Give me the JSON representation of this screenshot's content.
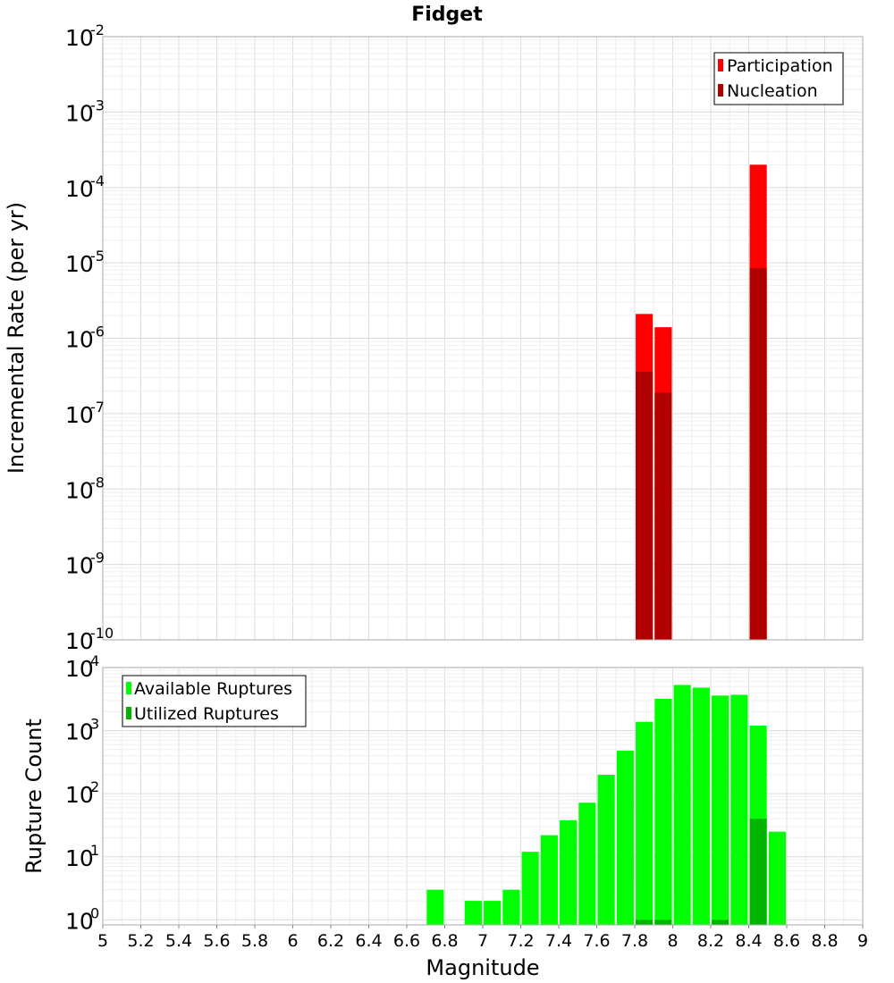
{
  "chart_data": [
    {
      "type": "bar",
      "title": "Fidget",
      "xlabel": "",
      "ylabel": "Incremental Rate (per yr)",
      "y_scale": "log",
      "ylim_exp": [
        -10,
        -2
      ],
      "xlim": [
        5,
        9
      ],
      "bin_width": 0.1,
      "legend_position": "top-right",
      "grid": true,
      "series": [
        {
          "name": "Participation",
          "color": "#ff0000",
          "x": [
            7.85,
            7.95,
            8.45
          ],
          "values": [
            2.1e-06,
            1.4e-06,
            0.0002
          ]
        },
        {
          "name": "Nucleation",
          "color": "#b00000",
          "x": [
            7.85,
            7.95,
            8.45
          ],
          "values": [
            3.6e-07,
            1.9e-07,
            8.5e-06
          ]
        }
      ]
    },
    {
      "type": "bar",
      "title": "",
      "xlabel": "Magnitude",
      "ylabel": "Rupture Count",
      "y_scale": "log",
      "ylim_exp": [
        -0.08,
        4
      ],
      "xlim": [
        5,
        9
      ],
      "bin_width": 0.1,
      "legend_position": "top-left",
      "grid": true,
      "x_ticks": [
        "5",
        "5.2",
        "5.4",
        "5.6",
        "5.8",
        "6",
        "6.2",
        "6.4",
        "6.6",
        "6.8",
        "7",
        "7.2",
        "7.4",
        "7.6",
        "7.8",
        "8",
        "8.2",
        "8.4",
        "8.6",
        "8.8",
        "9"
      ],
      "series": [
        {
          "name": "Available Ruptures",
          "color": "#00ff00",
          "x": [
            6.75,
            6.95,
            7.05,
            7.15,
            7.25,
            7.35,
            7.45,
            7.55,
            7.65,
            7.75,
            7.85,
            7.95,
            8.05,
            8.15,
            8.25,
            8.35,
            8.45,
            8.55
          ],
          "values": [
            3,
            2,
            2,
            3,
            12,
            22,
            38,
            72,
            200,
            480,
            1380,
            3200,
            5300,
            4800,
            3600,
            3700,
            1200,
            25
          ]
        },
        {
          "name": "Utilized Ruptures",
          "color": "#00b400",
          "x": [
            7.85,
            7.95,
            8.25,
            8.45
          ],
          "values": [
            1,
            1,
            1,
            40
          ]
        }
      ]
    }
  ],
  "y_axis_ticks": {
    "top": {
      "base": "10",
      "exponents": [
        "-10",
        "-9",
        "-8",
        "-7",
        "-6",
        "-5",
        "-4",
        "-3",
        "-2"
      ]
    },
    "bottom": {
      "base": "10",
      "exponents": [
        "0",
        "1",
        "2",
        "3",
        "4"
      ]
    }
  }
}
